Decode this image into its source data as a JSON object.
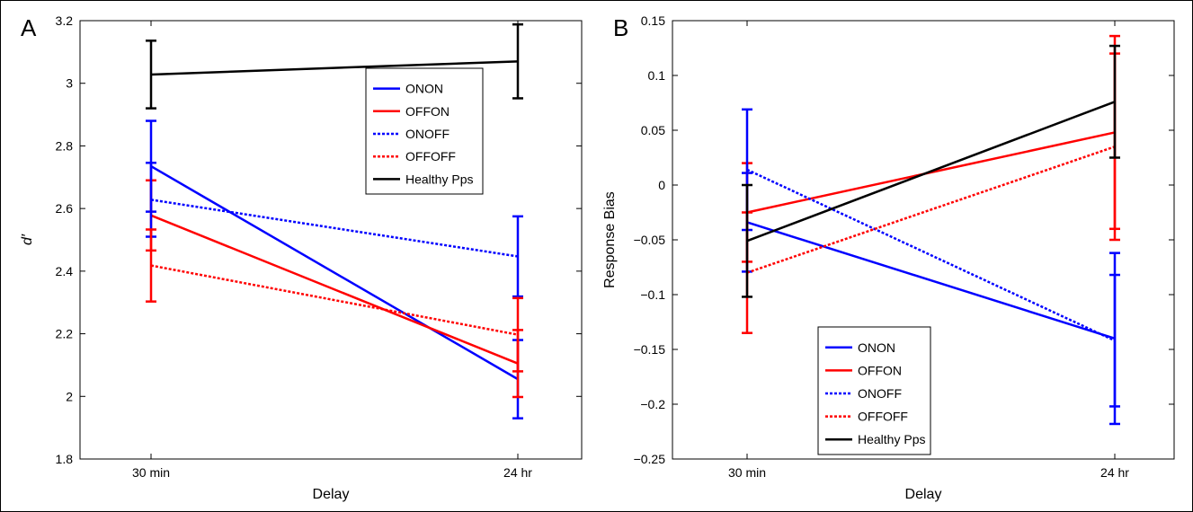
{
  "chart_data": [
    {
      "type": "line",
      "panel_label": "A",
      "xlabel": "Delay",
      "ylabel": "d′",
      "categories": [
        "30 min",
        "24 hr"
      ],
      "ylim": [
        1.8,
        3.2
      ],
      "yticks": [
        "1.8",
        "2",
        "2.2",
        "2.4",
        "2.6",
        "2.8",
        "3",
        "3.2"
      ],
      "grid": false,
      "legend_position": "top-right",
      "series": [
        {
          "name": "ONON",
          "color": "#0000ff",
          "dash": "solid",
          "values": [
            2.735,
            2.055
          ],
          "err": [
            0.145,
            0.125
          ]
        },
        {
          "name": "OFFON",
          "color": "#ff0000",
          "dash": "solid",
          "values": [
            2.578,
            2.105
          ],
          "err": [
            0.112,
            0.107
          ]
        },
        {
          "name": "ONOFF",
          "color": "#0000ff",
          "dash": "dotted",
          "values": [
            2.628,
            2.447
          ],
          "err": [
            0.118,
            0.128
          ]
        },
        {
          "name": "OFFOFF",
          "color": "#ff0000",
          "dash": "dotted",
          "values": [
            2.418,
            2.197
          ],
          "err": [
            0.115,
            0.117
          ]
        },
        {
          "name": "Healthy Pps",
          "color": "#000000",
          "dash": "solid",
          "values": [
            3.028,
            3.07
          ],
          "err": [
            0.108,
            0.118
          ]
        }
      ]
    },
    {
      "type": "line",
      "panel_label": "B",
      "xlabel": "Delay",
      "ylabel": "Response Bias",
      "categories": [
        "30 min",
        "24 hr"
      ],
      "ylim": [
        -0.25,
        0.15
      ],
      "yticks": [
        "−0.25",
        "−0.2",
        "−0.15",
        "−0.1",
        "−0.05",
        "0",
        "0.05",
        "0.1",
        "0.15"
      ],
      "grid": false,
      "legend_position": "bottom-left",
      "series": [
        {
          "name": "ONON",
          "color": "#0000ff",
          "dash": "solid",
          "values": [
            -0.034,
            -0.14
          ],
          "err": [
            0.045,
            0.078
          ]
        },
        {
          "name": "OFFON",
          "color": "#ff0000",
          "dash": "solid",
          "values": [
            -0.025,
            0.048
          ],
          "err": [
            0.045,
            0.088
          ]
        },
        {
          "name": "ONOFF",
          "color": "#0000ff",
          "dash": "dotted",
          "values": [
            0.014,
            -0.142
          ],
          "err": [
            0.055,
            0.06
          ]
        },
        {
          "name": "OFFOFF",
          "color": "#ff0000",
          "dash": "dotted",
          "values": [
            -0.08,
            0.035
          ],
          "err": [
            0.055,
            0.085
          ]
        },
        {
          "name": "Healthy Pps",
          "color": "#000000",
          "dash": "solid",
          "values": [
            -0.051,
            0.076
          ],
          "err": [
            0.051,
            0.051
          ]
        }
      ]
    }
  ]
}
